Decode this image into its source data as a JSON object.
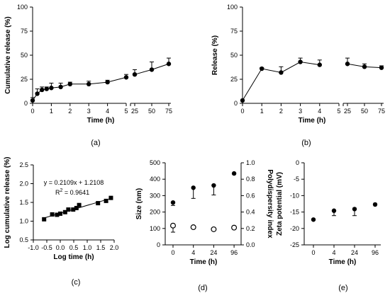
{
  "chart_data": [
    {
      "id": "a",
      "panel_label": "(a)",
      "type": "line",
      "xlabel": "Time (h)",
      "ylabel": "Cumulative release (%)",
      "ylim": [
        0,
        100
      ],
      "yticks": [
        0,
        25,
        50,
        75,
        100
      ],
      "xaxis_break": true,
      "segment1": {
        "xlim": [
          0,
          5
        ],
        "xticks": [
          0,
          1,
          2,
          3,
          4,
          5
        ]
      },
      "segment2": {
        "xticks": [
          25,
          50,
          75
        ]
      },
      "series": [
        {
          "marker": "filled-circle",
          "points": [
            {
              "x": 0,
              "y": 3,
              "err": 3
            },
            {
              "x": 0.25,
              "y": 10,
              "err": 5
            },
            {
              "x": 0.5,
              "y": 14,
              "err": 3
            },
            {
              "x": 0.75,
              "y": 15,
              "err": 2
            },
            {
              "x": 1,
              "y": 16,
              "err": 5
            },
            {
              "x": 1.5,
              "y": 17,
              "err": 4
            },
            {
              "x": 2,
              "y": 20,
              "err": 2
            },
            {
              "x": 3,
              "y": 20,
              "err": 3
            },
            {
              "x": 4,
              "y": 22,
              "err": 2
            },
            {
              "x": 5,
              "y": 27,
              "err": 3
            },
            {
              "x": 25,
              "y": 30,
              "err": 5
            },
            {
              "x": 50,
              "y": 35,
              "err": 8
            },
            {
              "x": 75,
              "y": 41,
              "err": 6
            }
          ]
        }
      ]
    },
    {
      "id": "b",
      "panel_label": "(b)",
      "type": "line",
      "xlabel": "Time (h)",
      "ylabel": "Release (%)",
      "ylim": [
        0,
        100
      ],
      "yticks": [
        0,
        25,
        50,
        75,
        100
      ],
      "xaxis_break": true,
      "segment1": {
        "xlim": [
          0,
          5
        ],
        "xticks": [
          0,
          1,
          2,
          3,
          4,
          5
        ]
      },
      "segment2": {
        "xticks": [
          25,
          50,
          75
        ]
      },
      "series": [
        {
          "marker": "filled-circle",
          "points": [
            {
              "x": 0,
              "y": 3,
              "err": 0
            },
            {
              "x": 1,
              "y": 36,
              "err": 1
            },
            {
              "x": 2,
              "y": 32,
              "err": 6
            },
            {
              "x": 3,
              "y": 43,
              "err": 4
            },
            {
              "x": 4,
              "y": 40,
              "err": 5
            },
            {
              "x": 25,
              "y": 41,
              "err": 6
            },
            {
              "x": 50,
              "y": 38,
              "err": 3
            },
            {
              "x": 75,
              "y": 37,
              "err": 2
            }
          ]
        }
      ]
    },
    {
      "id": "c",
      "panel_label": "(c)",
      "type": "scatter",
      "xlabel": "Log time (h)",
      "ylabel": "Log cumulative release (%)",
      "xlim": [
        -1.0,
        2.0
      ],
      "ylim": [
        0.5,
        2.5
      ],
      "xticks": [
        "-1.0",
        "-0.5",
        "0.0",
        "0.5",
        "1.0",
        "1.5",
        "2.0"
      ],
      "yticks": [
        "0.5",
        "1.0",
        "1.5",
        "2.0",
        "2.5"
      ],
      "equation": "y = 0.2109x + 1.2108",
      "r2_label": "R",
      "r2_sup": "2",
      "r2_value": " = 0.9641",
      "fit": {
        "slope": 0.2109,
        "intercept": 1.2108,
        "x_range": [
          -0.6,
          1.88
        ]
      },
      "series": [
        {
          "marker": "filled-square",
          "points": [
            {
              "x": -0.6,
              "y": 1.05
            },
            {
              "x": -0.3,
              "y": 1.18
            },
            {
              "x": -0.12,
              "y": 1.17
            },
            {
              "x": 0.0,
              "y": 1.2
            },
            {
              "x": 0.18,
              "y": 1.24
            },
            {
              "x": 0.3,
              "y": 1.31
            },
            {
              "x": 0.48,
              "y": 1.31
            },
            {
              "x": 0.6,
              "y": 1.35
            },
            {
              "x": 0.7,
              "y": 1.43
            },
            {
              "x": 1.4,
              "y": 1.48
            },
            {
              "x": 1.7,
              "y": 1.54
            },
            {
              "x": 1.88,
              "y": 1.62
            }
          ]
        }
      ]
    },
    {
      "id": "d",
      "panel_label": "(d)",
      "type": "scatter",
      "xlabel": "Time (h)",
      "ylabel": "Size (nm)",
      "y2label": "Polydispersity index",
      "categories": [
        "0",
        "4",
        "24",
        "96"
      ],
      "ylim": [
        0,
        500
      ],
      "yticks": [
        0,
        100,
        200,
        300,
        400,
        500
      ],
      "y2lim": [
        0.0,
        1.0
      ],
      "y2ticks": [
        "0.0",
        "0.2",
        "0.4",
        "0.6",
        "0.8",
        "1.0"
      ],
      "series": [
        {
          "marker": "filled-circle",
          "axis": "left",
          "values": [
            258,
            348,
            362,
            435
          ],
          "err": [
            18,
            65,
            58,
            0
          ]
        },
        {
          "marker": "open-circle",
          "axis": "right",
          "values": [
            0.235,
            0.215,
            0.19,
            0.21
          ],
          "err": [
            0.08,
            0.0,
            0.0,
            0.0
          ]
        }
      ]
    },
    {
      "id": "e",
      "panel_label": "(e)",
      "type": "scatter",
      "xlabel": "Time (h)",
      "ylabel": "Zeta potential (mV)",
      "categories": [
        "0",
        "4",
        "24",
        "96"
      ],
      "ylim": [
        -25,
        0
      ],
      "yticks": [
        -25,
        -20,
        -15,
        -10,
        -5,
        0
      ],
      "series": [
        {
          "marker": "filled-circle",
          "values": [
            -17.3,
            -14.6,
            -14.1,
            -12.7
          ],
          "err": [
            0,
            1.5,
            2.0,
            0
          ]
        }
      ]
    }
  ]
}
